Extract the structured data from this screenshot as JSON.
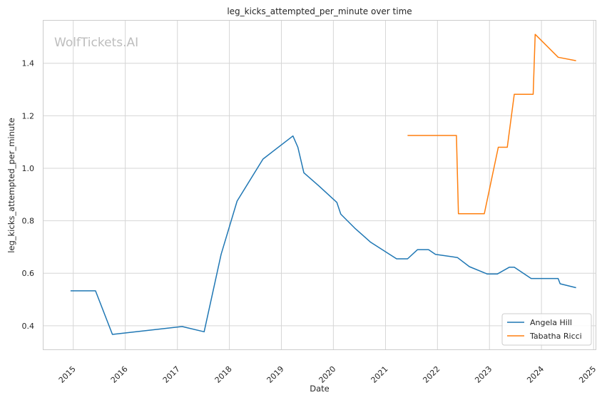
{
  "chart_data": {
    "type": "line",
    "title": "leg_kicks_attempted_per_minute over time",
    "xlabel": "Date",
    "ylabel": "leg_kicks_attempted_per_minute",
    "watermark": "WolfTickets.AI",
    "xlim": [
      "2014-06-01",
      "2025-01-15"
    ],
    "ylim": [
      0.31,
      1.565
    ],
    "x_ticks": [
      "2015",
      "2016",
      "2017",
      "2018",
      "2019",
      "2020",
      "2021",
      "2022",
      "2023",
      "2024",
      "2025"
    ],
    "y_ticks": [
      "0.4",
      "0.6",
      "0.8",
      "1.0",
      "1.2",
      "1.4"
    ],
    "y_tick_values": [
      0.4,
      0.6,
      0.8,
      1.0,
      1.2,
      1.4
    ],
    "grid": true,
    "legend_position": "bottom-right",
    "series": [
      {
        "name": "Angela Hill",
        "color": "#1f77b4",
        "points": [
          [
            "2014-12-13",
            0.533
          ],
          [
            "2015-06-06",
            0.533
          ],
          [
            "2015-10-03",
            0.367
          ],
          [
            "2017-02-04",
            0.397
          ],
          [
            "2017-07-08",
            0.377
          ],
          [
            "2017-11-04",
            0.672
          ],
          [
            "2018-02-24",
            0.875
          ],
          [
            "2018-08-25",
            1.035
          ],
          [
            "2019-03-23",
            1.123
          ],
          [
            "2019-04-27",
            1.08
          ],
          [
            "2019-06-08",
            0.983
          ],
          [
            "2019-09-21",
            0.933
          ],
          [
            "2020-01-25",
            0.87
          ],
          [
            "2020-02-22",
            0.825
          ],
          [
            "2020-05-30",
            0.772
          ],
          [
            "2020-09-19",
            0.718
          ],
          [
            "2021-03-20",
            0.655
          ],
          [
            "2021-06-05",
            0.655
          ],
          [
            "2021-08-14",
            0.69
          ],
          [
            "2021-10-30",
            0.69
          ],
          [
            "2021-12-18",
            0.672
          ],
          [
            "2022-05-21",
            0.66
          ],
          [
            "2022-08-13",
            0.625
          ],
          [
            "2022-12-17",
            0.597
          ],
          [
            "2023-02-25",
            0.597
          ],
          [
            "2023-05-20",
            0.623
          ],
          [
            "2023-06-24",
            0.623
          ],
          [
            "2023-10-21",
            0.58
          ],
          [
            "2024-04-27",
            0.58
          ],
          [
            "2024-05-11",
            0.56
          ],
          [
            "2024-08-31",
            0.545
          ]
        ]
      },
      {
        "name": "Tabatha Ricci",
        "color": "#ff7f0e",
        "points": [
          [
            "2021-06-05",
            1.125
          ],
          [
            "2022-05-14",
            1.125
          ],
          [
            "2022-05-28",
            0.827
          ],
          [
            "2022-11-26",
            0.827
          ],
          [
            "2023-03-04",
            1.08
          ],
          [
            "2023-05-06",
            1.08
          ],
          [
            "2023-06-24",
            1.282
          ],
          [
            "2023-11-04",
            1.282
          ],
          [
            "2023-11-18",
            1.51
          ],
          [
            "2024-04-27",
            1.423
          ],
          [
            "2024-08-31",
            1.41
          ]
        ]
      }
    ]
  }
}
